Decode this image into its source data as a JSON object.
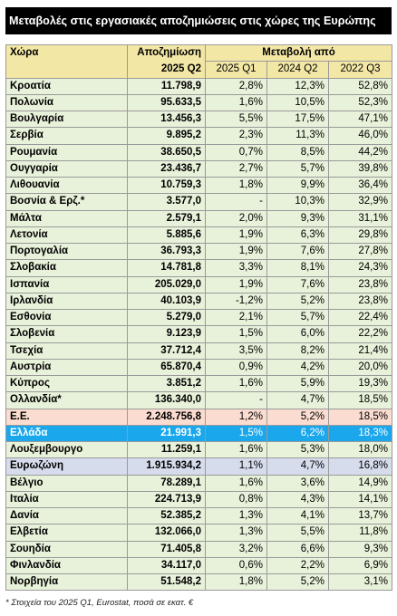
{
  "title": "Μεταβολές στις εργασιακές αποζημιώσεις στις χώρες της Ευρώπης",
  "table": {
    "header": {
      "country": "Χώρα",
      "comp": "Αποζημίωση",
      "comp_period": "2025 Q2",
      "change": "Μεταβολή από",
      "periods": [
        "2025 Q1",
        "2024 Q2",
        "2022 Q3"
      ]
    },
    "rows": [
      [
        "Κροατία",
        "11.798,9",
        "2,8%",
        "12,3%",
        "52,8%"
      ],
      [
        "Πολωνία",
        "95.633,5",
        "1,6%",
        "10,5%",
        "52,3%"
      ],
      [
        "Βουλγαρία",
        "13.456,3",
        "5,5%",
        "17,5%",
        "47,1%"
      ],
      [
        "Σερβία",
        "9.895,2",
        "2,3%",
        "11,3%",
        "46,0%"
      ],
      [
        "Ρουμανία",
        "38.650,5",
        "0,7%",
        "8,5%",
        "44,2%"
      ],
      [
        "Ουγγαρία",
        "23.436,7",
        "2,7%",
        "5,7%",
        "39,8%"
      ],
      [
        "Λιθουανία",
        "10.759,3",
        "1,8%",
        "9,9%",
        "36,4%"
      ],
      [
        "Βοσνία & Ερζ.*",
        "3.577,0",
        "-",
        "10,3%",
        "32,9%"
      ],
      [
        "Μάλτα",
        "2.579,1",
        "2,0%",
        "9,3%",
        "31,1%"
      ],
      [
        "Λετονία",
        "5.885,6",
        "1,9%",
        "6,3%",
        "29,8%"
      ],
      [
        "Πορτογαλία",
        "36.793,3",
        "1,9%",
        "7,6%",
        "27,8%"
      ],
      [
        "Σλοβακία",
        "14.781,8",
        "3,3%",
        "8,1%",
        "24,3%"
      ],
      [
        "Ισπανία",
        "205.029,0",
        "1,9%",
        "7,6%",
        "23,8%"
      ],
      [
        "Ιρλανδία",
        "40.103,9",
        "-1,2%",
        "5,2%",
        "23,8%"
      ],
      [
        "Εσθονία",
        "5.279,0",
        "2,1%",
        "5,7%",
        "22,4%"
      ],
      [
        "Σλοβενία",
        "9.123,9",
        "1,5%",
        "6,0%",
        "22,2%"
      ],
      [
        "Τσεχία",
        "37.712,4",
        "3,5%",
        "8,2%",
        "21,4%"
      ],
      [
        "Αυστρία",
        "65.870,4",
        "0,9%",
        "4,2%",
        "20,0%"
      ],
      [
        "Κύπρος",
        "3.851,2",
        "1,6%",
        "5,9%",
        "19,3%"
      ],
      [
        "Ολλανδία*",
        "136.340,0",
        "-",
        "4,7%",
        "18,5%"
      ],
      [
        "Ε.Ε.",
        "2.248.756,8",
        "1,2%",
        "5,2%",
        "18,5%"
      ],
      [
        "Ελλάδα",
        "21.991,3",
        "1,5%",
        "6,2%",
        "18,3%"
      ],
      [
        "Λουξεμβουργο",
        "11.259,1",
        "1,6%",
        "5,3%",
        "18,0%"
      ],
      [
        "Ευρωζώνη",
        "1.915.934,2",
        "1,1%",
        "4,7%",
        "16,8%"
      ],
      [
        "Βέλγιο",
        "78.289,1",
        "1,6%",
        "3,6%",
        "14,9%"
      ],
      [
        "Ιταλία",
        "224.713,9",
        "0,8%",
        "4,3%",
        "14,1%"
      ],
      [
        "Δανία",
        "52.385,2",
        "1,3%",
        "4,1%",
        "13,7%"
      ],
      [
        "Ελβετία",
        "132.066,0",
        "1,3%",
        "5,5%",
        "11,8%"
      ],
      [
        "Σουηδία",
        "71.405,8",
        "3,2%",
        "6,6%",
        "9,3%"
      ],
      [
        "Φινλανδία",
        "34.117,0",
        "0,6%",
        "2,2%",
        "6,9%"
      ],
      [
        "Νορβηγία",
        "51.548,2",
        "1,8%",
        "5,2%",
        "3,1%"
      ]
    ]
  },
  "footnote": "* Στοιχεία του 2025 Q1, Eurostat, ποσά σε εκατ. €"
}
